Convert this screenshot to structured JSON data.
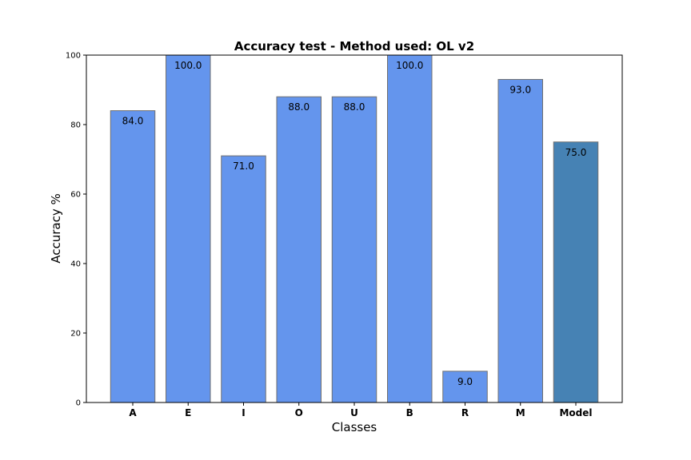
{
  "colors": {
    "class_bar": "#6495ed",
    "model_bar": "#4682b4",
    "bar_edge": "#707070"
  },
  "chart_data": {
    "type": "bar",
    "title": "Accuracy test - Method used: OL v2",
    "xlabel": "Classes",
    "ylabel": "Accuracy %",
    "ylim": [
      0,
      100
    ],
    "yticks": [
      0,
      20,
      40,
      60,
      80,
      100
    ],
    "grid": false,
    "categories": [
      "A",
      "E",
      "I",
      "O",
      "U",
      "B",
      "R",
      "M",
      "Model"
    ],
    "values": [
      84.0,
      100.0,
      71.0,
      88.0,
      88.0,
      100.0,
      9.0,
      93.0,
      75.0
    ],
    "labels": [
      "84.0",
      "100.0",
      "71.0",
      "88.0",
      "88.0",
      "100.0",
      "9.0",
      "93.0",
      "75.0"
    ]
  }
}
